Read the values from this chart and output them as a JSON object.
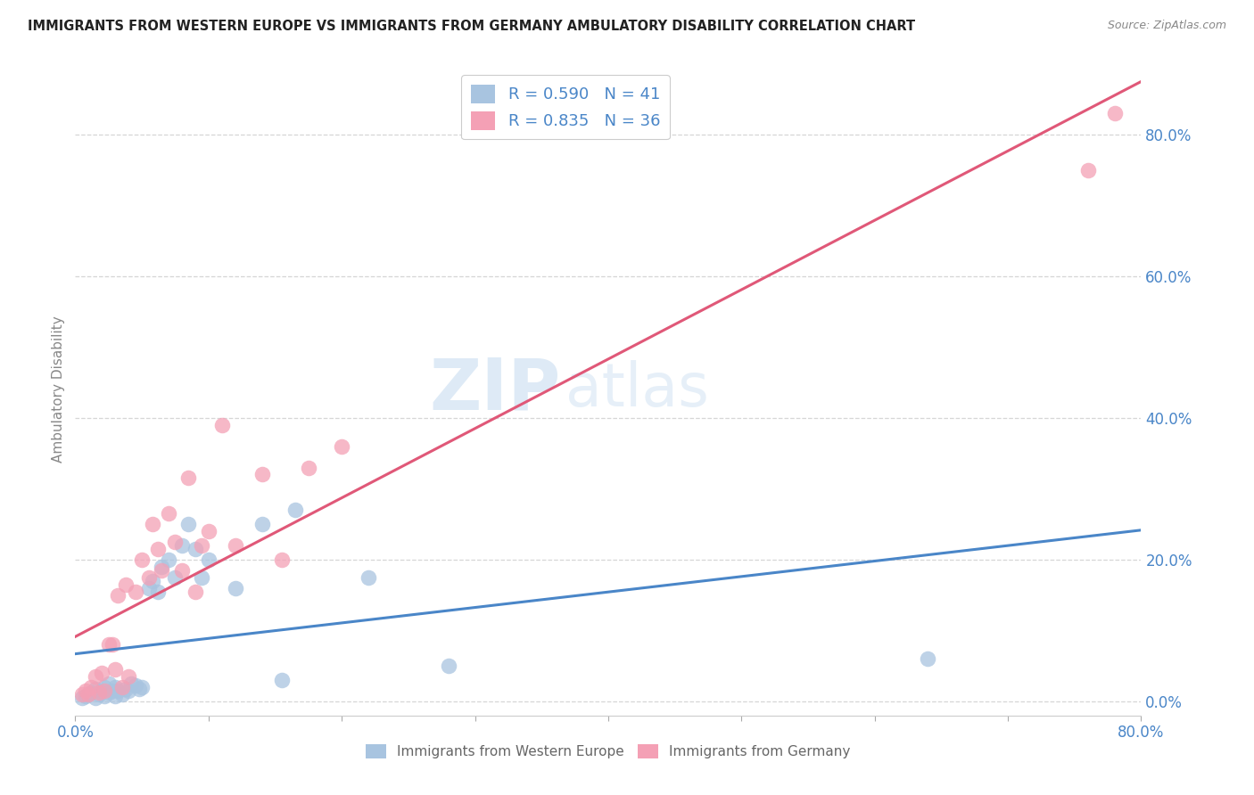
{
  "title": "IMMIGRANTS FROM WESTERN EUROPE VS IMMIGRANTS FROM GERMANY AMBULATORY DISABILITY CORRELATION CHART",
  "source": "Source: ZipAtlas.com",
  "ylabel": "Ambulatory Disability",
  "legend_label1": "Immigrants from Western Europe",
  "legend_label2": "Immigrants from Germany",
  "R1": 0.59,
  "N1": 41,
  "R2": 0.835,
  "N2": 36,
  "color1": "#a8c4e0",
  "color2": "#f4a0b5",
  "line_color1": "#4a86c8",
  "line_color2": "#e05878",
  "tick_label_color": "#4a86c8",
  "xlim": [
    0.0,
    0.8
  ],
  "ylim": [
    -0.02,
    0.9
  ],
  "xticks": [
    0.0,
    0.1,
    0.2,
    0.3,
    0.4,
    0.5,
    0.6,
    0.7,
    0.8
  ],
  "xtick_labels_show": [
    "0.0%",
    "",
    "",
    "",
    "",
    "",
    "",
    "",
    "80.0%"
  ],
  "yticks": [
    0.0,
    0.2,
    0.4,
    0.6,
    0.8
  ],
  "ytick_labels": [
    "0.0%",
    "20.0%",
    "40.0%",
    "60.0%",
    "80.0%"
  ],
  "background_color": "#ffffff",
  "grid_color": "#cccccc",
  "watermark_zip": "ZIP",
  "watermark_atlas": "atlas",
  "blue_x": [
    0.005,
    0.008,
    0.01,
    0.012,
    0.015,
    0.015,
    0.018,
    0.02,
    0.022,
    0.022,
    0.025,
    0.025,
    0.028,
    0.03,
    0.03,
    0.032,
    0.035,
    0.038,
    0.04,
    0.042,
    0.045,
    0.048,
    0.05,
    0.055,
    0.058,
    0.062,
    0.065,
    0.07,
    0.075,
    0.08,
    0.085,
    0.09,
    0.095,
    0.1,
    0.12,
    0.14,
    0.155,
    0.165,
    0.22,
    0.28,
    0.64
  ],
  "blue_y": [
    0.005,
    0.008,
    0.01,
    0.012,
    0.005,
    0.018,
    0.01,
    0.015,
    0.008,
    0.02,
    0.012,
    0.025,
    0.015,
    0.008,
    0.02,
    0.015,
    0.01,
    0.018,
    0.015,
    0.025,
    0.022,
    0.018,
    0.02,
    0.16,
    0.17,
    0.155,
    0.19,
    0.2,
    0.175,
    0.22,
    0.25,
    0.215,
    0.175,
    0.2,
    0.16,
    0.25,
    0.03,
    0.27,
    0.175,
    0.05,
    0.06
  ],
  "pink_x": [
    0.005,
    0.008,
    0.01,
    0.012,
    0.015,
    0.018,
    0.02,
    0.022,
    0.025,
    0.028,
    0.03,
    0.032,
    0.035,
    0.038,
    0.04,
    0.045,
    0.05,
    0.055,
    0.058,
    0.062,
    0.065,
    0.07,
    0.075,
    0.08,
    0.085,
    0.09,
    0.095,
    0.1,
    0.11,
    0.12,
    0.14,
    0.155,
    0.175,
    0.2,
    0.76,
    0.78
  ],
  "pink_y": [
    0.01,
    0.015,
    0.01,
    0.02,
    0.035,
    0.012,
    0.04,
    0.015,
    0.08,
    0.08,
    0.045,
    0.15,
    0.02,
    0.165,
    0.035,
    0.155,
    0.2,
    0.175,
    0.25,
    0.215,
    0.185,
    0.265,
    0.225,
    0.185,
    0.315,
    0.155,
    0.22,
    0.24,
    0.39,
    0.22,
    0.32,
    0.2,
    0.33,
    0.36,
    0.75,
    0.83
  ]
}
